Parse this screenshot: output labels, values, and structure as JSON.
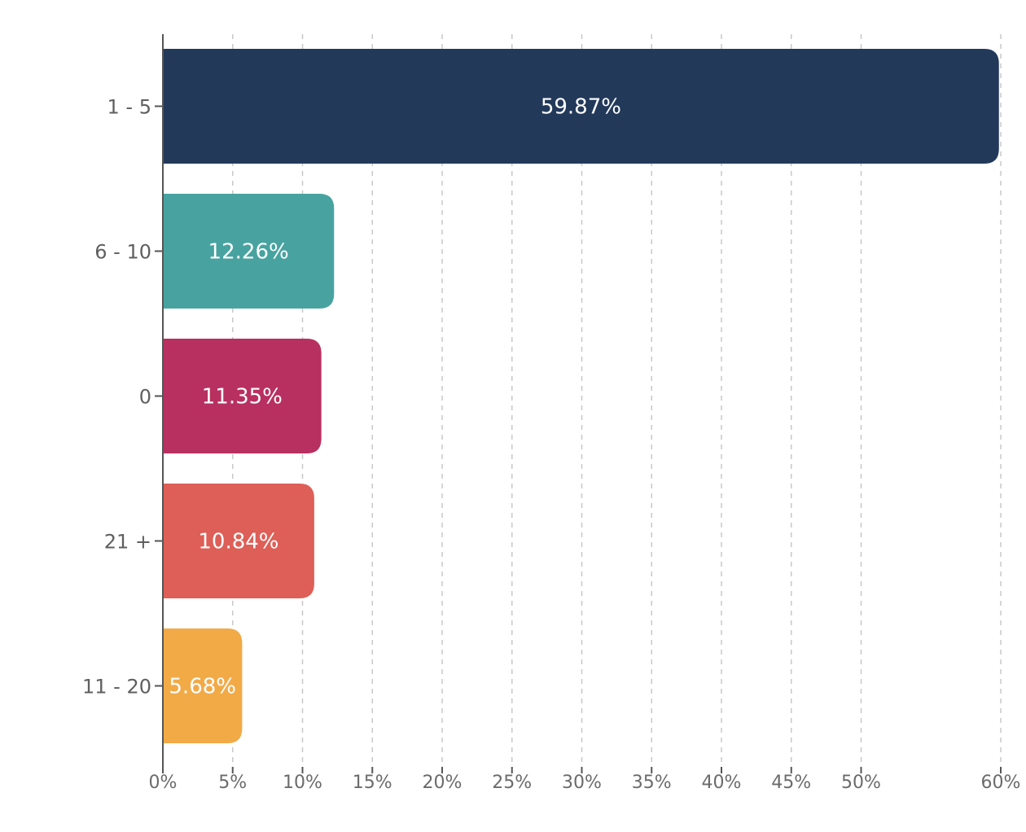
{
  "chart_data": {
    "type": "bar",
    "orientation": "horizontal",
    "title": "",
    "xlabel": "",
    "ylabel": "",
    "categories": [
      "1 - 5",
      "6 - 10",
      "0",
      "21 +",
      "11 - 20"
    ],
    "values": [
      59.87,
      12.26,
      11.35,
      10.84,
      5.68
    ],
    "value_labels": [
      "59.87%",
      "12.26%",
      "11.35%",
      "10.84%",
      "5.68%"
    ],
    "colors": [
      "#22395a",
      "#48a3a0",
      "#b8305f",
      "#dd5f57",
      "#f2aa47"
    ],
    "xlim": [
      0,
      60
    ],
    "x_ticks": [
      0,
      5,
      10,
      15,
      20,
      25,
      30,
      35,
      40,
      45,
      50,
      60
    ],
    "x_tick_labels": [
      "0%",
      "5%",
      "10%",
      "15%",
      "20%",
      "25%",
      "30%",
      "35%",
      "40%",
      "45%",
      "50%",
      "60%"
    ],
    "grid": "vertical dashed",
    "legend": "none"
  }
}
